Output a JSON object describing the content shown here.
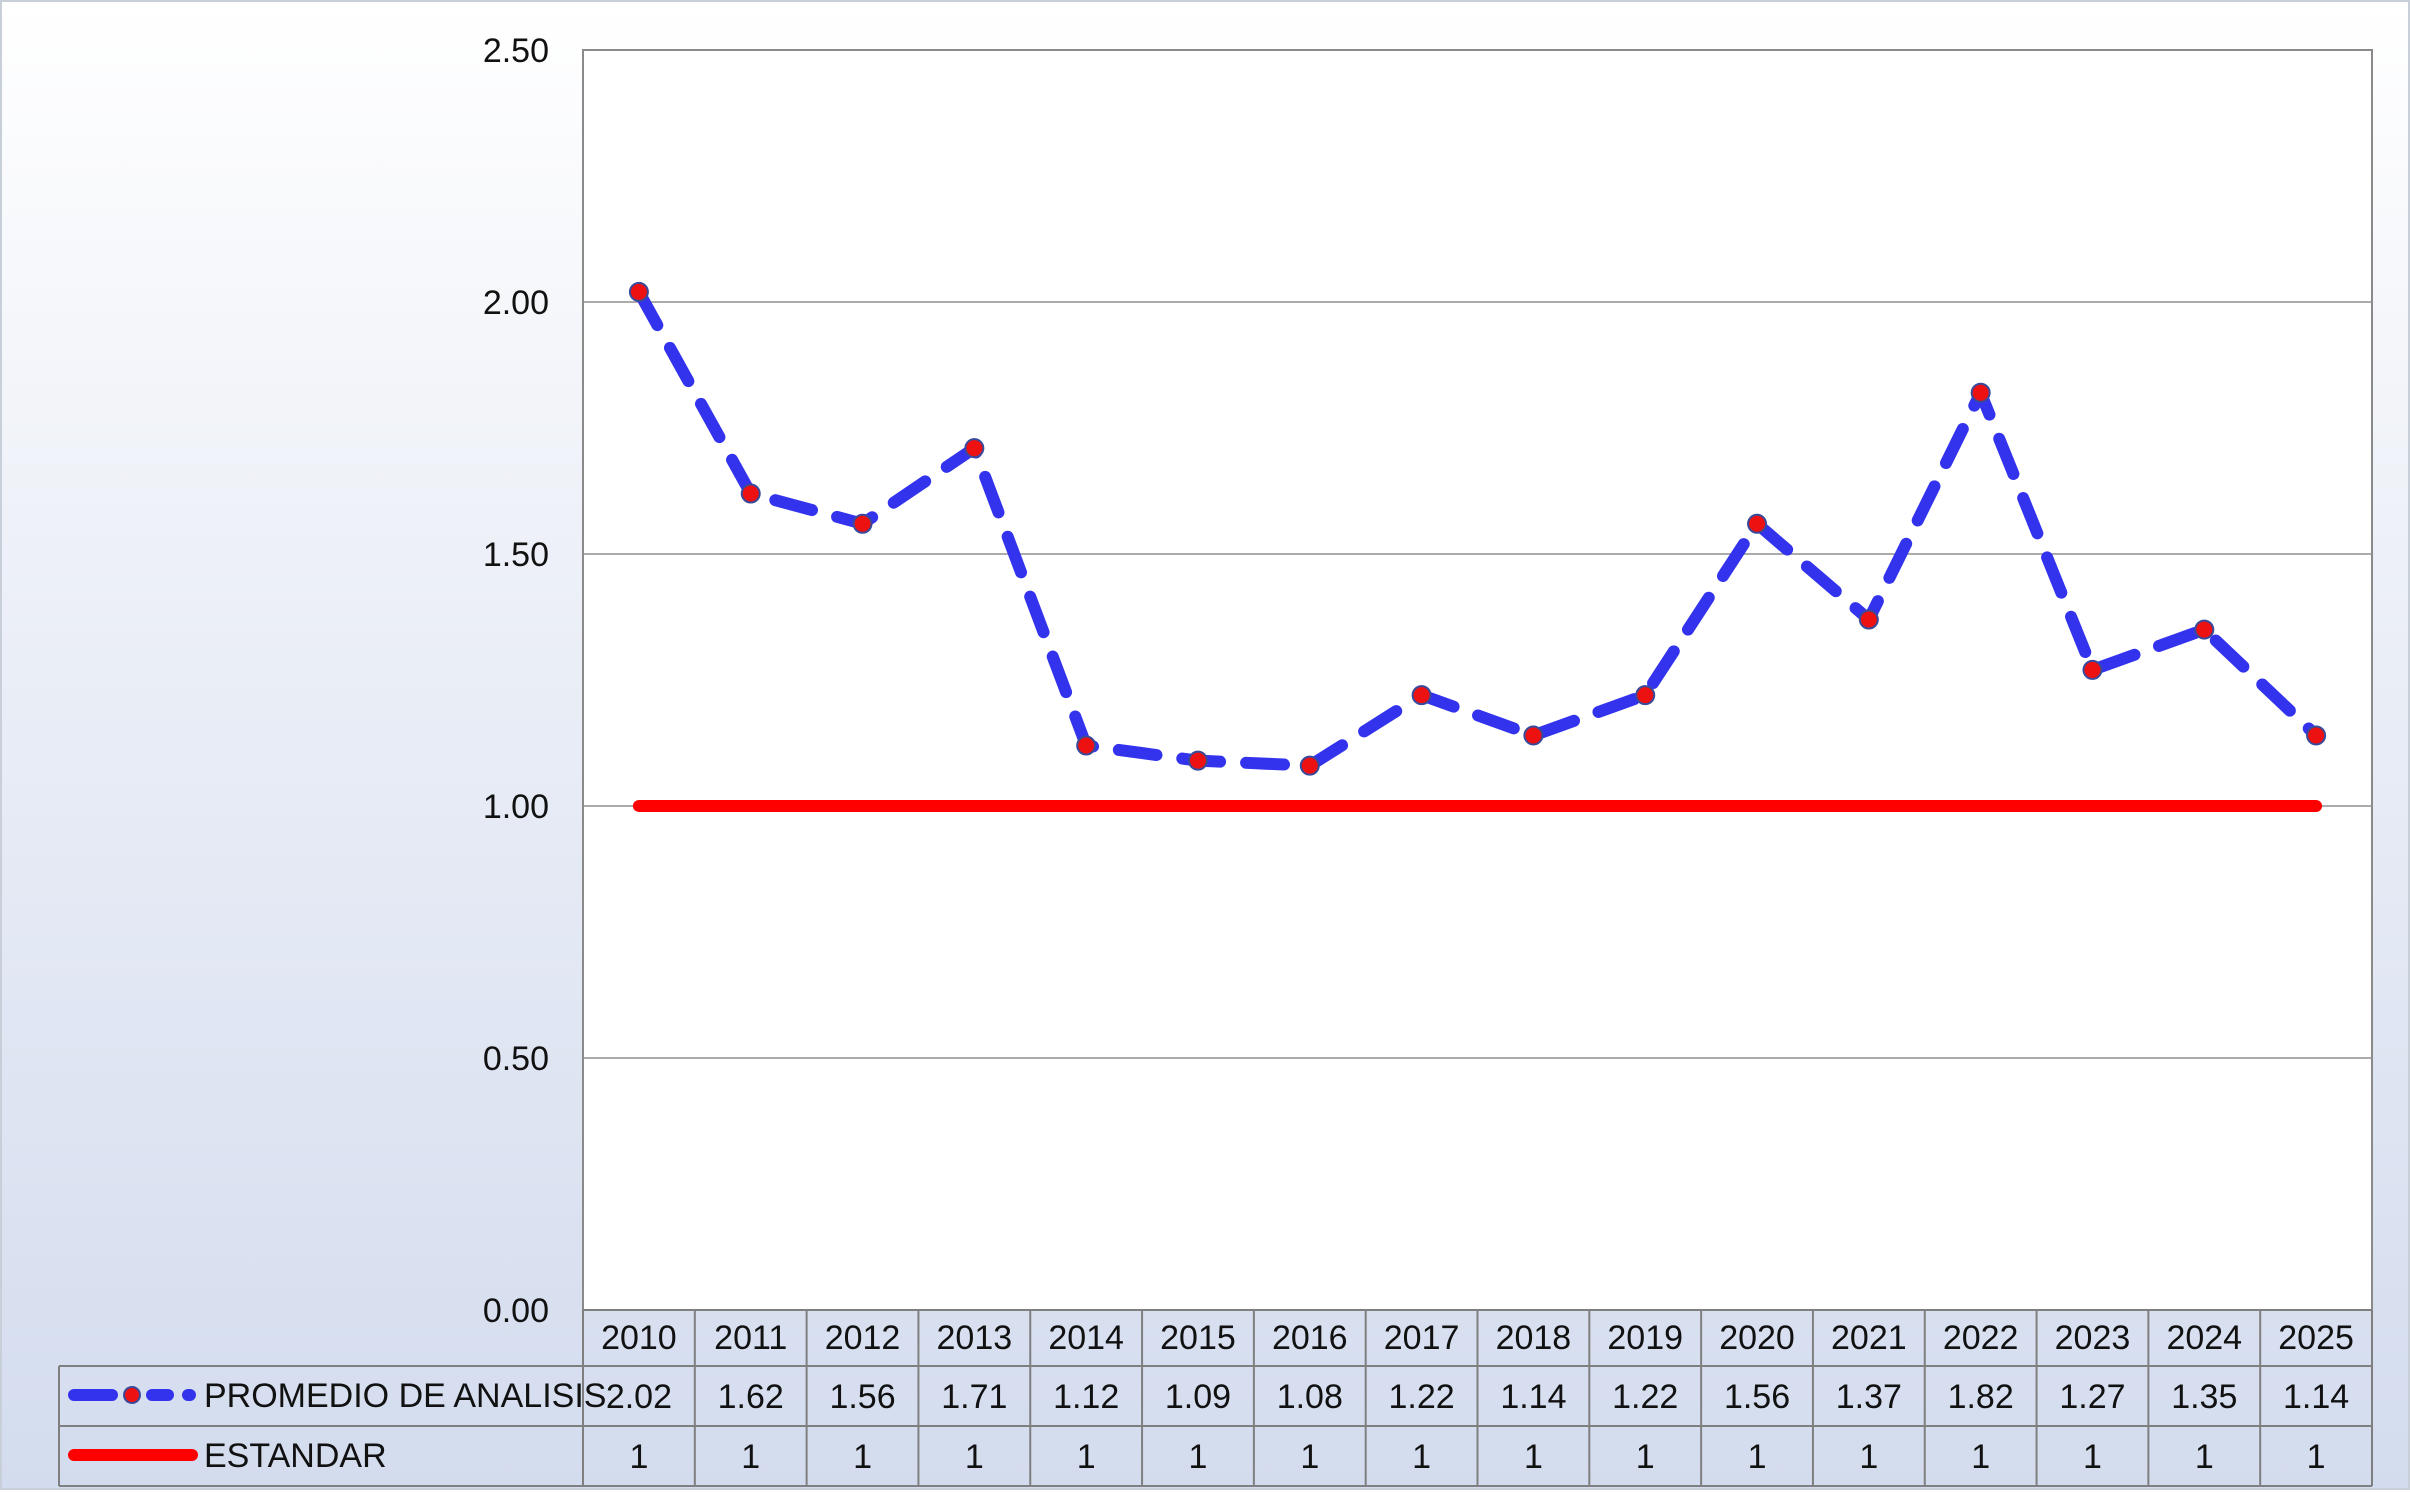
{
  "chart_data": {
    "type": "line",
    "categories": [
      "2010",
      "2011",
      "2012",
      "2013",
      "2014",
      "2015",
      "2016",
      "2017",
      "2018",
      "2019",
      "2020",
      "2021",
      "2022",
      "2023",
      "2024",
      "2025"
    ],
    "series": [
      {
        "name": "PROMEDIO DE ANALISIS",
        "values": [
          "2.02",
          "1.62",
          "1.56",
          "1.71",
          "1.12",
          "1.09",
          "1.08",
          "1.22",
          "1.14",
          "1.22",
          "1.56",
          "1.37",
          "1.82",
          "1.27",
          "1.35",
          "1.14"
        ],
        "color": "#3333ee",
        "marker_color": "#ee1111",
        "line_style": "dashed"
      },
      {
        "name": "ESTANDAR",
        "values": [
          "1",
          "1",
          "1",
          "1",
          "1",
          "1",
          "1",
          "1",
          "1",
          "1",
          "1",
          "1",
          "1",
          "1",
          "1",
          "1"
        ],
        "color": "#ff0000",
        "line_style": "solid"
      }
    ],
    "yticks": [
      "0.00",
      "0.50",
      "1.00",
      "1.50",
      "2.00",
      "2.50"
    ],
    "ylim": [
      0,
      2.5
    ],
    "grid": true,
    "legend": "data-table"
  }
}
